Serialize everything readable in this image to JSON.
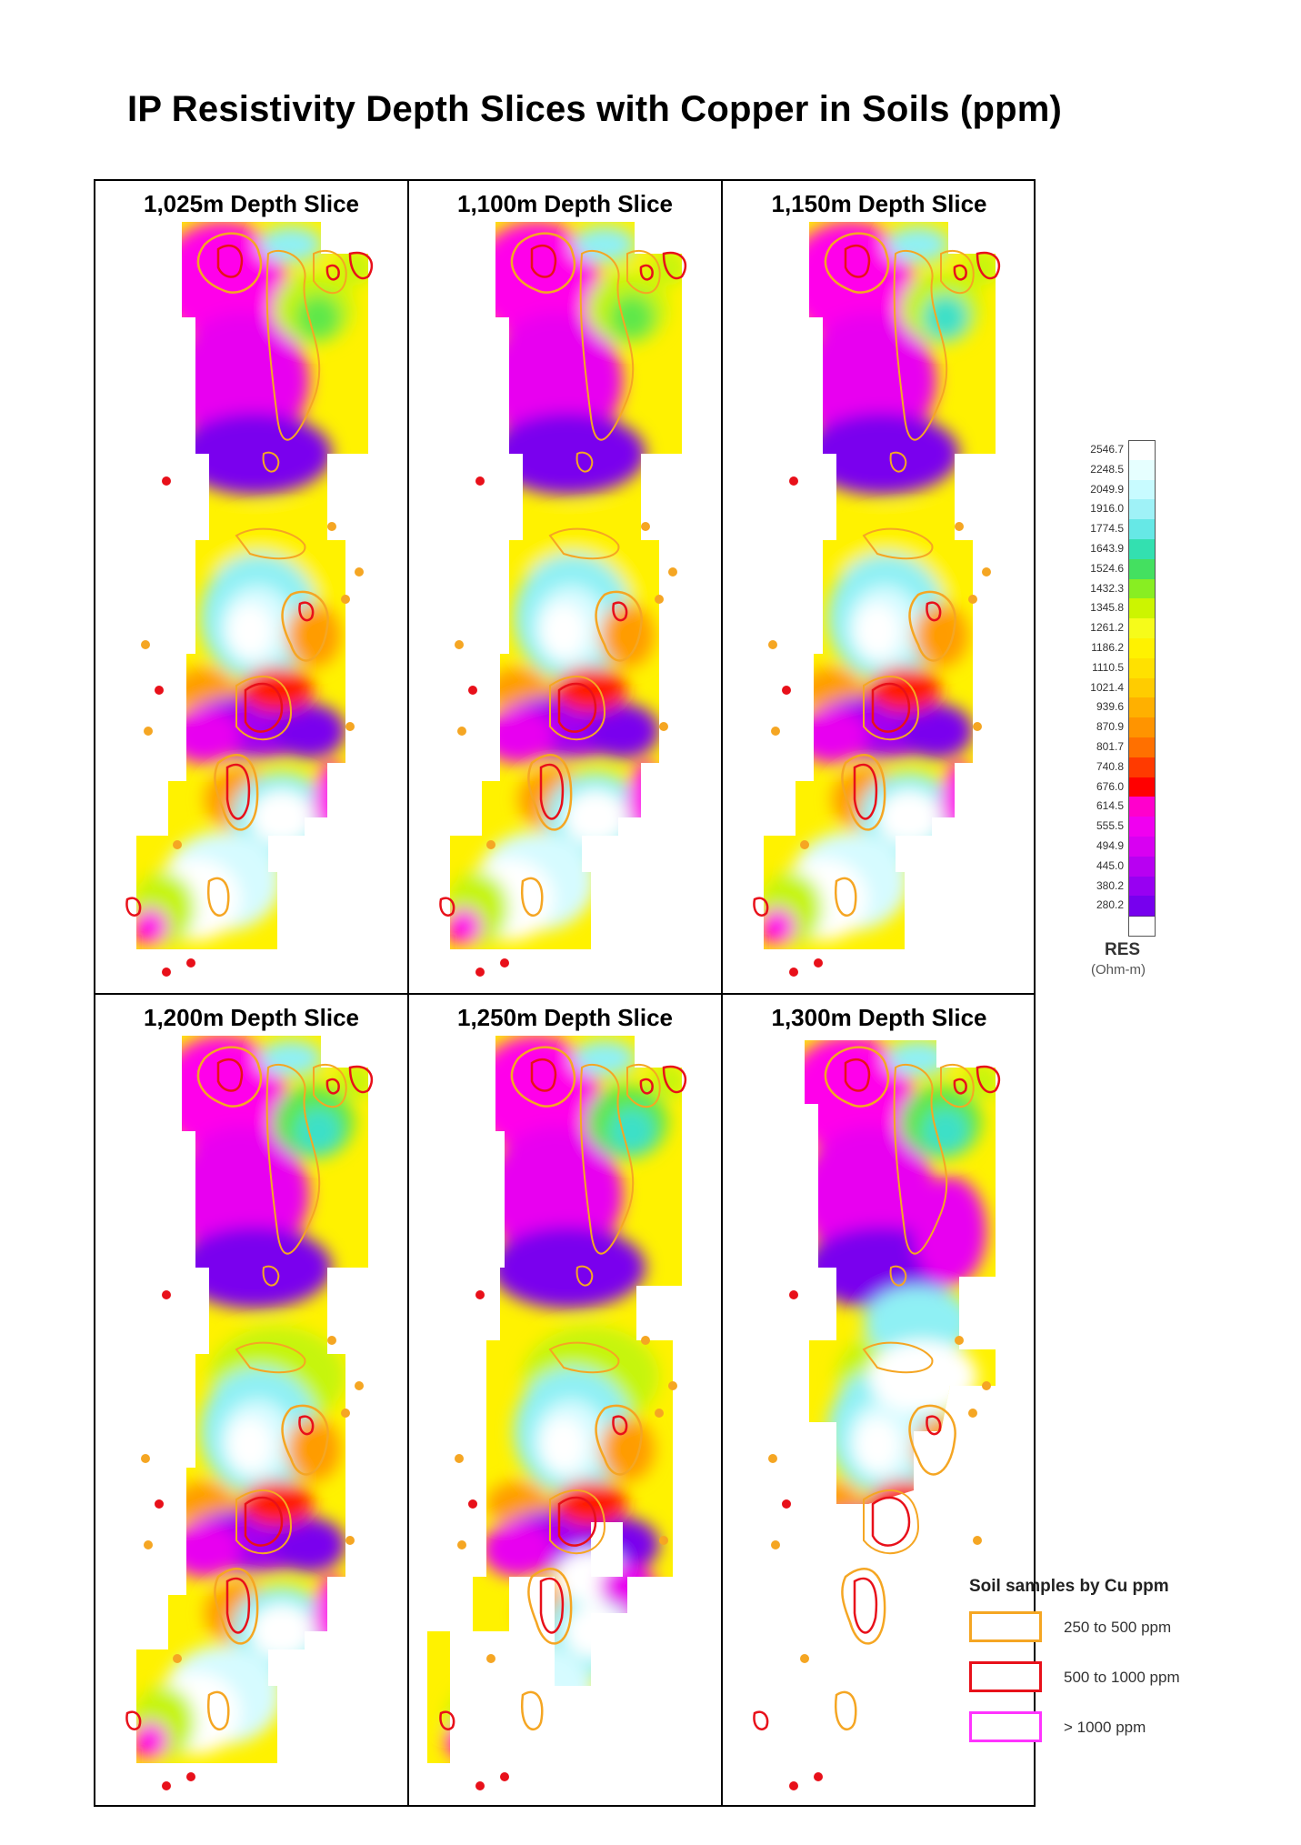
{
  "title": "IP Resistivity Depth Slices with Copper in Soils (ppm)",
  "panels": [
    {
      "label": "1,025m Depth Slice",
      "variant": 0
    },
    {
      "label": "1,100m Depth Slice",
      "variant": 1
    },
    {
      "label": "1,150m Depth Slice",
      "variant": 2
    },
    {
      "label": "1,200m Depth Slice",
      "variant": 3
    },
    {
      "label": "1,250m Depth Slice",
      "variant": 4
    },
    {
      "label": "1,300m Depth Slice",
      "variant": 5
    }
  ],
  "resistivity_legend": {
    "title": "RES",
    "unit": "(Ohm-m)",
    "values": [
      "2546.7",
      "2248.5",
      "2049.9",
      "1916.0",
      "1774.5",
      "1643.9",
      "1524.6",
      "1432.3",
      "1345.8",
      "1261.2",
      "1186.2",
      "1110.5",
      "1021.4",
      "939.6",
      "870.9",
      "801.7",
      "740.8",
      "676.0",
      "614.5",
      "555.5",
      "494.9",
      "445.0",
      "380.2",
      "280.2"
    ],
    "colors": [
      "#ffffff",
      "#e6ffff",
      "#c8fbff",
      "#9ff2f7",
      "#66e8e6",
      "#33e0b0",
      "#44e060",
      "#88ee22",
      "#ccf500",
      "#f6fb1a",
      "#fff200",
      "#ffe100",
      "#ffcc00",
      "#ffb000",
      "#ff9400",
      "#ff7000",
      "#ff3a00",
      "#ff0000",
      "#ff00cc",
      "#f000f0",
      "#d800f2",
      "#b800f2",
      "#9800f2",
      "#7700ee"
    ]
  },
  "soil_legend": {
    "title": "Soil samples by Cu ppm",
    "items": [
      {
        "label": "250 to 500 ppm",
        "color": "#f5a623"
      },
      {
        "label": "500 to 1000 ppm",
        "color": "#e8101a"
      },
      {
        "label": "> 1000 ppm",
        "color": "#ff33ff"
      }
    ]
  }
}
